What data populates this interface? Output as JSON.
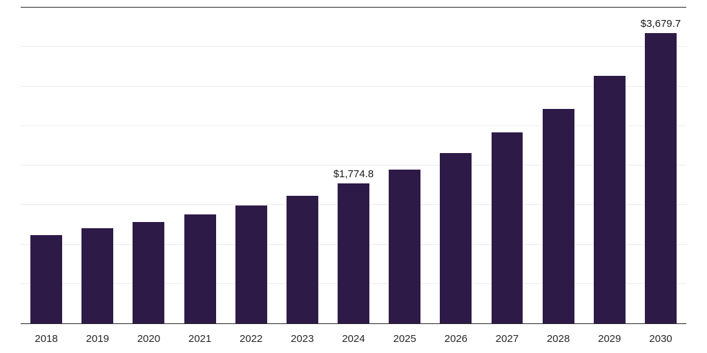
{
  "chart_data": {
    "type": "bar",
    "title": "",
    "xlabel": "",
    "ylabel": "",
    "categories": [
      "2018",
      "2019",
      "2020",
      "2021",
      "2022",
      "2023",
      "2024",
      "2025",
      "2026",
      "2027",
      "2028",
      "2029",
      "2030"
    ],
    "values": [
      1115,
      1205,
      1280,
      1380,
      1495,
      1615,
      1774.8,
      1945,
      2155,
      2415,
      2720,
      3135,
      3679.7
    ],
    "labeled_points": {
      "2024": "$1,774.8",
      "2030": "$3,679.7"
    },
    "ylim": [
      0,
      4000
    ],
    "grid_step": 500,
    "grid": "horizontal",
    "legend": "none",
    "bar_color": "#2e1a47",
    "gridline_color": "#ececec",
    "axis_line_color": "#262626",
    "label_color": "#1a1a1a"
  }
}
